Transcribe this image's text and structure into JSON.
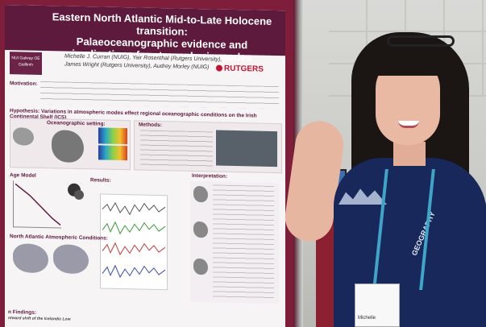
{
  "poster": {
    "title_line1": "Eastern North Atlantic Mid-to-Late Holocene transition:",
    "title_line2": "Palaeoceanographic evidence and implications for atmospheric modes",
    "authors_line1": "Michelle J. Curran (NUIG), Yair Rosenthal (Rutgers University),",
    "authors_line2": "James Wright (Rutgers University), Audrey Morley (NUIG)",
    "logo_left": "NUI Galway OÉ Gaillimh",
    "logo_right": "RUTGERS",
    "motivation_label": "Motivation:",
    "hypothesis_label": "Hypothesis: Variations in atmospheric modes effect regional oceanographic conditions on the Irish Continental Shelf (ICS)",
    "setting_label": "Oceanographic setting:",
    "methods_label": "Methods:",
    "age_model_label": "Age Model",
    "results_label": "Results:",
    "interpretation_label": "Interpretation:",
    "atmos_label": "North Atlantic Atmospheric Conditions:",
    "findings_label": "n Findings:",
    "findings_text": "ntward shift of the Icelandic Low"
  },
  "shirt": {
    "print": "GEOGRAPHY"
  },
  "badge": {
    "name": "Michelle"
  }
}
